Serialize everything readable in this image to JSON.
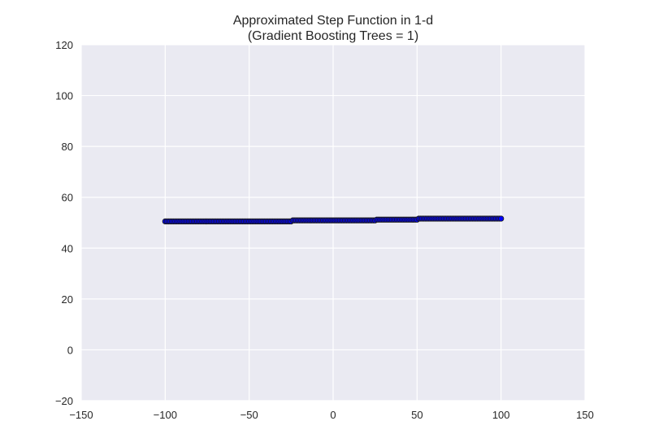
{
  "chart_data": {
    "type": "scatter",
    "title_lines": [
      "Approximated Step Function in 1-d",
      "(Gradient Boosting Trees = 1)"
    ],
    "xlabel": "",
    "ylabel": "",
    "xlim": [
      -150,
      150
    ],
    "ylim": [
      -20,
      120
    ],
    "x_ticks": [
      -150,
      -100,
      -50,
      0,
      50,
      100,
      150
    ],
    "y_ticks": [
      -20,
      0,
      20,
      40,
      60,
      80,
      100,
      120
    ],
    "x_tick_labels": [
      "−150",
      "−100",
      "−50",
      "0",
      "50",
      "100",
      "150"
    ],
    "y_tick_labels": [
      "−20",
      "0",
      "20",
      "40",
      "60",
      "80",
      "100",
      "120"
    ],
    "grid": true,
    "point_color": "#0000FF",
    "edge_color": "#1a1a1a",
    "background_color": "#EAEAF2",
    "x_step": 1,
    "segments": [
      {
        "x_start": -100,
        "x_end": -25,
        "y": 50.5
      },
      {
        "x_start": -24,
        "x_end": 25,
        "y": 50.9
      },
      {
        "x_start": 26,
        "x_end": 50,
        "y": 51.2
      },
      {
        "x_start": 51,
        "x_end": 100,
        "y": 51.6
      }
    ]
  }
}
